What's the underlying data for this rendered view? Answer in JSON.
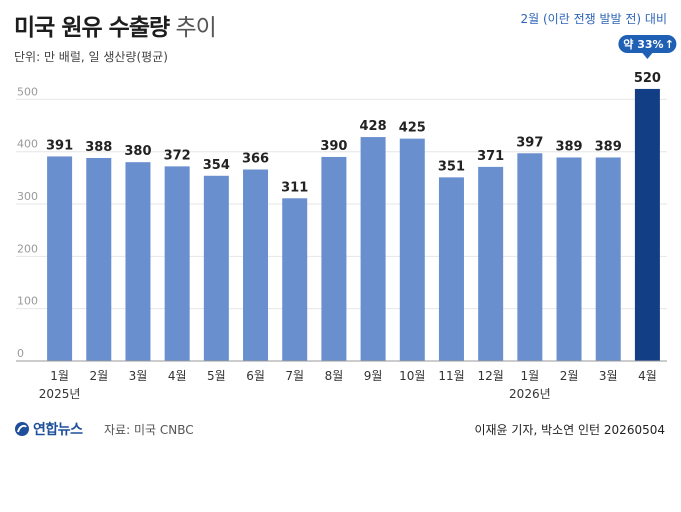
{
  "header": {
    "title_bold": "미국 원유 수출량",
    "title_light": "추이",
    "unit": "단위: 만 배럴, 일 생산량(평균)",
    "note": "2월 (이란 전쟁 발발 전) 대비"
  },
  "callout": {
    "text": "약 33%",
    "arrow": "↑"
  },
  "footer": {
    "logo": "연합뉴스",
    "logo_icon": "yonhap-logo-icon",
    "source": "자료: 미국 CNBC",
    "credit": "이재윤 기자, 박소연 인턴 20260504"
  },
  "colors": {
    "bar": "#6a8fcf",
    "bar_highlight": "#123e86",
    "callout_bg": "#1f5fb4",
    "grid": "#e6e6e6"
  },
  "chart_data": {
    "type": "bar",
    "categories": [
      "1월",
      "2월",
      "3월",
      "4월",
      "5월",
      "6월",
      "7월",
      "8월",
      "9월",
      "10월",
      "11월",
      "12월",
      "1월",
      "2월",
      "3월",
      "4월"
    ],
    "year_labels": [
      {
        "index": 0,
        "text": "2025년"
      },
      {
        "index": 12,
        "text": "2026년"
      }
    ],
    "values": [
      391,
      388,
      380,
      372,
      354,
      366,
      311,
      390,
      428,
      425,
      351,
      371,
      397,
      389,
      389,
      520
    ],
    "highlight_index": 15,
    "yticks": [
      0,
      100,
      200,
      300,
      400,
      500
    ],
    "ylim": [
      0,
      560
    ],
    "grid": true
  }
}
